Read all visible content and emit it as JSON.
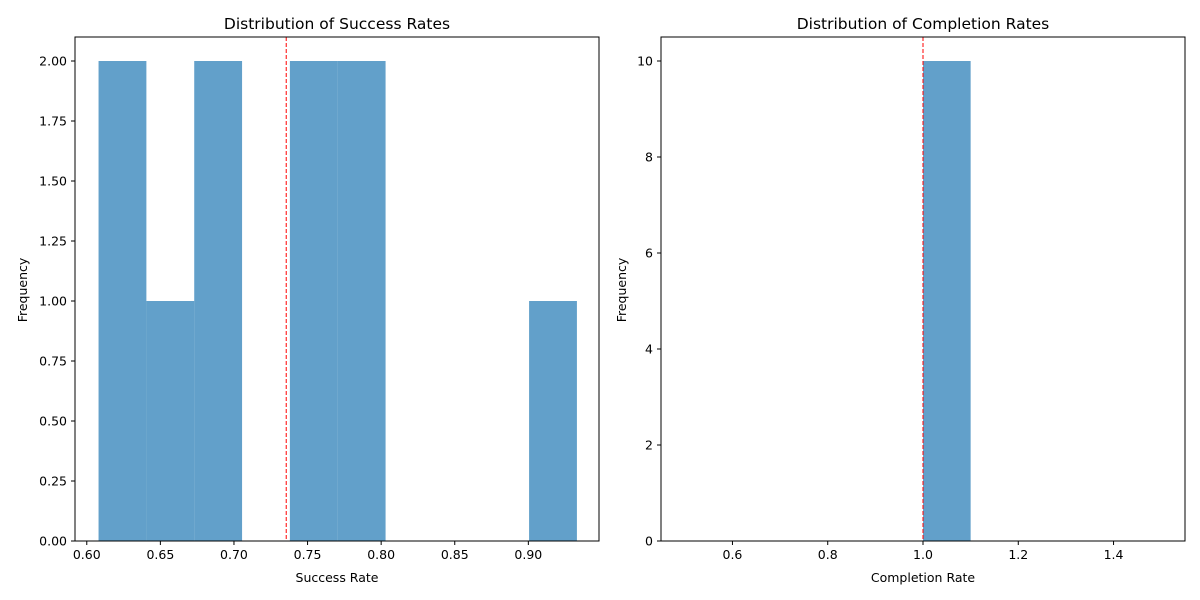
{
  "chart_data": [
    {
      "type": "bar",
      "histogram": true,
      "title": "Distribution of Success Rates",
      "xlabel": "Success Rate",
      "ylabel": "Frequency",
      "xlim": [
        0.592,
        0.948
      ],
      "ylim": [
        0,
        2.1
      ],
      "xticks": [
        0.6,
        0.65,
        0.7,
        0.75,
        0.8,
        0.85,
        0.9
      ],
      "xtick_labels": [
        "0.60",
        "0.65",
        "0.70",
        "0.75",
        "0.80",
        "0.85",
        "0.90"
      ],
      "yticks": [
        0,
        0.25,
        0.5,
        0.75,
        1.0,
        1.25,
        1.5,
        1.75,
        2.0
      ],
      "ytick_labels": [
        "0.00",
        "0.25",
        "0.50",
        "0.75",
        "1.00",
        "1.25",
        "1.50",
        "1.75",
        "2.00"
      ],
      "bins": [
        {
          "x0": 0.608,
          "x1": 0.6405,
          "count": 2
        },
        {
          "x0": 0.6405,
          "x1": 0.673,
          "count": 1
        },
        {
          "x0": 0.673,
          "x1": 0.7055,
          "count": 2
        },
        {
          "x0": 0.7055,
          "x1": 0.738,
          "count": 0
        },
        {
          "x0": 0.738,
          "x1": 0.7705,
          "count": 2
        },
        {
          "x0": 0.7705,
          "x1": 0.803,
          "count": 2
        },
        {
          "x0": 0.803,
          "x1": 0.8355,
          "count": 0
        },
        {
          "x0": 0.8355,
          "x1": 0.868,
          "count": 0
        },
        {
          "x0": 0.868,
          "x1": 0.9005,
          "count": 0
        },
        {
          "x0": 0.9005,
          "x1": 0.933,
          "count": 1
        }
      ],
      "mean_line": 0.7355,
      "bar_color": "#1f77b4",
      "mean_line_color": "#ff0000",
      "grid": false
    },
    {
      "type": "bar",
      "histogram": true,
      "title": "Distribution of Completion Rates",
      "xlabel": "Completion Rate",
      "ylabel": "Frequency",
      "xlim": [
        0.45,
        1.55
      ],
      "ylim": [
        0,
        10.5
      ],
      "xticks": [
        0.6,
        0.8,
        1.0,
        1.2,
        1.4
      ],
      "xtick_labels": [
        "0.6",
        "0.8",
        "1.0",
        "1.2",
        "1.4"
      ],
      "yticks": [
        0,
        2,
        4,
        6,
        8,
        10
      ],
      "ytick_labels": [
        "0",
        "2",
        "4",
        "6",
        "8",
        "10"
      ],
      "bins": [
        {
          "x0": 1.0,
          "x1": 1.1,
          "count": 10
        }
      ],
      "mean_line": 1.0,
      "bar_color": "#1f77b4",
      "mean_line_color": "#ff0000",
      "grid": false
    }
  ]
}
